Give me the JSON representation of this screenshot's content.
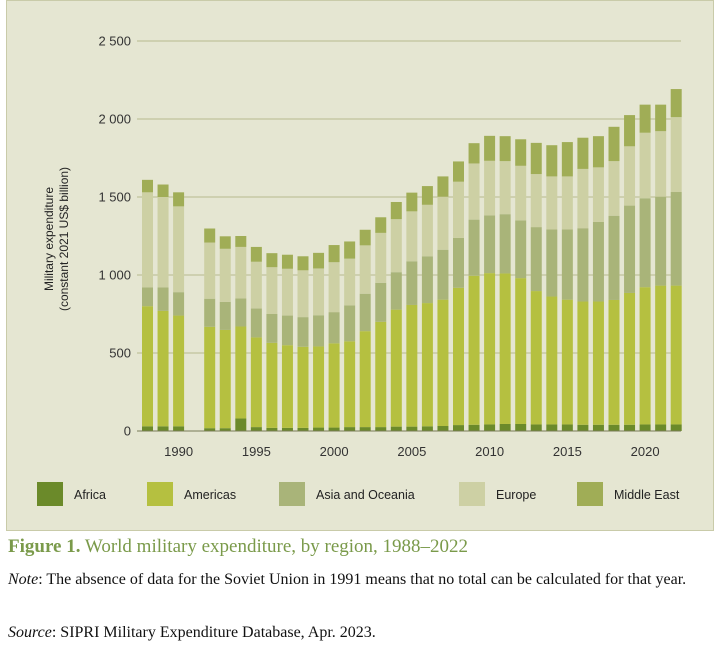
{
  "chart_data": {
    "type": "bar",
    "stacked": true,
    "ylabel": [
      "Military expenditure",
      "(constant 2021 US$ billion)"
    ],
    "ylim": [
      0,
      2500
    ],
    "yticks": [
      0,
      500,
      1000,
      1500,
      2000,
      2500
    ],
    "ytick_labels": [
      "0",
      "500",
      "1 000",
      "1 500",
      "2 000",
      "2 500"
    ],
    "xticks": [
      "1990",
      "1995",
      "2000",
      "2005",
      "2010",
      "2015",
      "2020"
    ],
    "x": [
      1988,
      1989,
      1990,
      1991,
      1992,
      1993,
      1994,
      1995,
      1996,
      1997,
      1998,
      1999,
      2000,
      2001,
      2002,
      2003,
      2004,
      2005,
      2006,
      2007,
      2008,
      2009,
      2010,
      2011,
      2012,
      2013,
      2014,
      2015,
      2016,
      2017,
      2018,
      2019,
      2020,
      2021,
      2022
    ],
    "grid": true,
    "legend_position": "bottom",
    "series": [
      {
        "name": "Africa",
        "color": "#6b8a2a",
        "values": [
          30,
          30,
          30,
          null,
          18,
          18,
          80,
          25,
          20,
          20,
          20,
          22,
          22,
          25,
          25,
          25,
          28,
          28,
          30,
          32,
          38,
          40,
          42,
          45,
          45,
          42,
          42,
          42,
          40,
          40,
          40,
          40,
          42,
          42,
          42
        ]
      },
      {
        "name": "Americas",
        "color": "#b5c040",
        "values": [
          770,
          740,
          710,
          null,
          650,
          630,
          590,
          575,
          545,
          530,
          520,
          520,
          540,
          550,
          615,
          675,
          750,
          780,
          790,
          810,
          880,
          955,
          970,
          965,
          935,
          855,
          820,
          800,
          790,
          790,
          800,
          845,
          880,
          890,
          890
        ]
      },
      {
        "name": "Asia and Oceania",
        "color": "#a9b479",
        "values": [
          120,
          150,
          150,
          null,
          180,
          180,
          180,
          185,
          185,
          190,
          190,
          200,
          200,
          230,
          240,
          250,
          240,
          280,
          300,
          320,
          320,
          360,
          370,
          380,
          370,
          410,
          430,
          450,
          470,
          510,
          540,
          560,
          570,
          570,
          600
        ]
      },
      {
        "name": "Europe",
        "color": "#cdd0a4",
        "values": [
          610,
          580,
          550,
          null,
          360,
          340,
          330,
          300,
          300,
          300,
          300,
          300,
          320,
          300,
          310,
          320,
          340,
          320,
          330,
          340,
          360,
          360,
          350,
          340,
          350,
          340,
          340,
          340,
          380,
          350,
          350,
          380,
          420,
          420,
          480
        ]
      },
      {
        "name": "Middle East",
        "color": "#a0ad56",
        "values": [
          80,
          80,
          90,
          null,
          90,
          80,
          70,
          95,
          90,
          90,
          90,
          100,
          110,
          110,
          100,
          100,
          110,
          120,
          120,
          130,
          130,
          130,
          160,
          160,
          170,
          200,
          200,
          220,
          200,
          200,
          220,
          200,
          180,
          170,
          180
        ]
      }
    ]
  },
  "caption": {
    "label": "Figure 1.",
    "title": "World military expenditure, by region, 1988–2022",
    "note_label": "Note",
    "note_text": ": The absence of data for the Soviet Union in 1991 means that no total can be calculated for that year.",
    "source_label": "Source",
    "source_text": ": SIPRI Military Expenditure Database, Apr. 2023."
  },
  "colors": {
    "panel_bg": "#e5e6d2",
    "gridline": "#b8b98f",
    "caption_green": "#7a9a4a"
  }
}
